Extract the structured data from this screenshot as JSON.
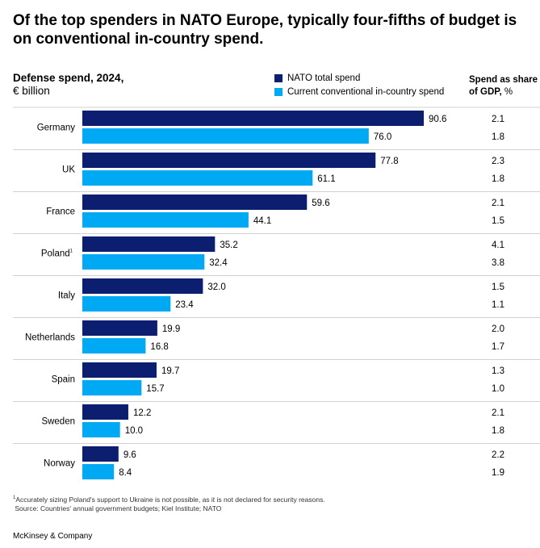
{
  "title": "Of the top spenders in NATO Europe, typically four-fifths of budget is on conventional in-country spend.",
  "subtitle": {
    "main": "Defense spend, 2024,",
    "unit": "€ billion"
  },
  "gdp_header": {
    "bold": "Spend as share of GDP,",
    "unit": " %"
  },
  "footnotes": {
    "note1": "Accurately sizing Poland's support to Ukraine is not possible, as it is not declared for security reasons.",
    "source": "Source: Countries' annual government budgets; Kiel Institute; NATO"
  },
  "brand": "McKinsey & Company",
  "colors": {
    "total": "#0b1e6f",
    "conventional": "#00a9f4",
    "divider": "#d0d0d0"
  },
  "chart_data": {
    "type": "bar",
    "orientation": "horizontal",
    "categories": [
      "Germany",
      "UK",
      "France",
      "Poland",
      "Italy",
      "Netherlands",
      "Spain",
      "Sweden",
      "Norway"
    ],
    "category_footnotes": {
      "Poland": "1"
    },
    "series": [
      {
        "name": "NATO total spend",
        "values": [
          90.6,
          77.8,
          59.6,
          35.2,
          32.0,
          19.9,
          19.7,
          12.2,
          9.6
        ]
      },
      {
        "name": "Current conventional in-country spend",
        "values": [
          76.0,
          61.1,
          44.1,
          32.4,
          23.4,
          16.8,
          15.7,
          10.0,
          8.4
        ]
      }
    ],
    "gdp_share": {
      "total": [
        "2.1",
        "2.3",
        "2.1",
        "4.1",
        "1.5",
        "2.0",
        "1.3",
        "2.1",
        "2.2"
      ],
      "conventional": [
        "1.8",
        "1.8",
        "1.5",
        "3.8",
        "1.1",
        "1.7",
        "1.0",
        "1.8",
        "1.9"
      ]
    },
    "value_labels": {
      "total": [
        "90.6",
        "77.8",
        "59.6",
        "35.2",
        "32.0",
        "19.9",
        "19.7",
        "12.2",
        "9.6"
      ],
      "conventional": [
        "76.0",
        "61.1",
        "44.1",
        "32.4",
        "23.4",
        "16.8",
        "15.7",
        "10.0",
        "8.4"
      ]
    },
    "xlim": [
      0,
      90.6
    ],
    "grid": false,
    "legend_position": "top-center"
  }
}
